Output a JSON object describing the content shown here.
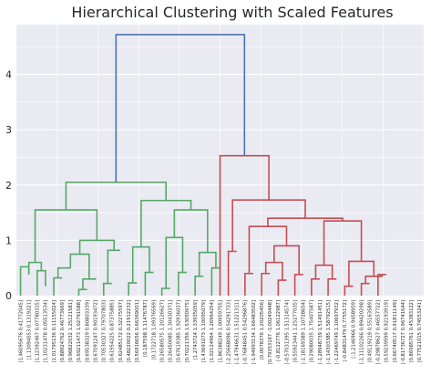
{
  "chart_data": {
    "type": "dendrogram",
    "title": "Hierarchical Clustering with Scaled Features",
    "xlabel": "",
    "ylabel": "",
    "ylim": [
      0,
      4.9
    ],
    "yticks": [
      0,
      1,
      2,
      3,
      4
    ],
    "grid": true,
    "background": "#eaeaf2",
    "colors": {
      "green": "#55a868",
      "red": "#c44e52",
      "blue": "#4c72b0"
    },
    "leaves": [
      "[1.46095676 0.41772045]",
      "[1.13094553 0.1319221]",
      "[1.12392467 0.07780315]",
      "[1.10231478 0.05513534]",
      "[1.01795136 0.11155024]",
      "[0.88924762 0.46773669]",
      "[0.96822032 1.25121581]",
      "[0.69211473 1.02791588]",
      "[0.69538329 0.80803339]",
      "[0.67091247 0.90193472]",
      "[0.70530327 0.79707803]",
      "[0.61954225 0.87375885]",
      "[0.62485172 0.32275597]",
      "[0.48220022 0.21912232]",
      "[0.56916656 0.66369001]",
      "[0.187598 1.11476787]",
      "[0.1722718 1.09376569]",
      "[0.26580575 1.20126627]",
      "[0.26450085 1.30430371]",
      "[0.67619385 1.92936037]",
      "[0.70221356 1.53050975]",
      "[1.2743724 1.33935059]",
      "[1.43691073 1.10095079]",
      "[1.02124964 1.26964254]",
      "[1.86388249 1.00959755]",
      "[-2.25668096 0.54291733]",
      "[-1.47946631 1.51221311]",
      "[-0.76848451 0.54296876]",
      "[-1.94993134 1.66483502]",
      "[0.0078376 1.20205456]",
      "[0.79353167 -1.00249448]",
      "[-0.8122776 1.06122987]",
      "[-0.57031395 1.51314574]",
      "[0.55923441 1.25277035]",
      "[-1.18169389 1.10728654]",
      "[0.29080035 1.75407587]",
      "[-1.28948739 1.51491451]",
      "[-1.14303385 1.58792515]",
      "[-1.22469749 1.10697932]",
      "[-0.84831479 0.7755172]",
      "[-1.2146966 0.9458959]",
      "[-1.11102266 0.89420298]",
      "[0.49119219 0.55163589]",
      "[-0.29878627 0.46557722]",
      "[0.59239999 0.92193919]",
      "[0.66740517 0.91811149]",
      "[-0.81736727 0.96741644]",
      "[0.86985761 0.45383122]",
      "[0.77521015 0.74553241]"
    ],
    "links": [
      {
        "x": [
          5,
          5,
          15,
          15
        ],
        "y": [
          0,
          0.52,
          0.52,
          0.38
        ],
        "color": "#55a868"
      },
      {
        "x": [
          25,
          25,
          35,
          35
        ],
        "y": [
          0,
          0.45,
          0.45,
          0.17
        ],
        "color": "#55a868"
      },
      {
        "x": [
          15,
          15,
          30,
          30
        ],
        "y": [
          0.38,
          0.6,
          0.6,
          0.45
        ],
        "color": "#55a868"
      },
      {
        "x": [
          45,
          45,
          55,
          55
        ],
        "y": [
          0,
          0.32,
          0.32,
          0.32
        ],
        "color": "#55a868"
      },
      {
        "x": [
          50,
          50,
          65,
          65
        ],
        "y": [
          0.32,
          0.5,
          0.5,
          0.5
        ],
        "color": "#55a868"
      },
      {
        "x": [
          75,
          75,
          85,
          85
        ],
        "y": [
          0,
          0.11,
          0.11,
          0.11
        ],
        "color": "#55a868"
      },
      {
        "x": [
          80,
          80,
          95,
          95
        ],
        "y": [
          0.11,
          0.3,
          0.3,
          0.32
        ],
        "color": "#55a868"
      },
      {
        "x": [
          65,
          65,
          87.5,
          87.5
        ],
        "y": [
          0.5,
          0.75,
          0.75,
          0.3
        ],
        "color": "#55a868"
      },
      {
        "x": [
          105,
          105,
          115,
          115
        ],
        "y": [
          0,
          0.22,
          0.22,
          0.22
        ],
        "color": "#55a868"
      },
      {
        "x": [
          110,
          110,
          125,
          125
        ],
        "y": [
          0.22,
          0.82,
          0.82,
          0.82
        ],
        "color": "#55a868"
      },
      {
        "x": [
          76.25,
          76.25,
          117.5,
          117.5
        ],
        "y": [
          0.75,
          1.0,
          1.0,
          0.82
        ],
        "color": "#55a868"
      },
      {
        "x": [
          22.5,
          22.5,
          96.88,
          96.88
        ],
        "y": [
          0.6,
          1.55,
          1.55,
          1.0
        ],
        "color": "#55a868"
      },
      {
        "x": [
          135,
          135,
          145,
          145
        ],
        "y": [
          0,
          0.23,
          0.23,
          0.23
        ],
        "color": "#55a868"
      },
      {
        "x": [
          155,
          155,
          165,
          165
        ],
        "y": [
          0,
          0.42,
          0.42,
          0.42
        ],
        "color": "#55a868"
      },
      {
        "x": [
          140,
          140,
          160,
          160
        ],
        "y": [
          0.23,
          0.88,
          0.88,
          0.42
        ],
        "color": "#55a868"
      },
      {
        "x": [
          175,
          175,
          185,
          185
        ],
        "y": [
          0,
          0.13,
          0.13,
          0.13
        ],
        "color": "#55a868"
      },
      {
        "x": [
          195,
          195,
          205,
          205
        ],
        "y": [
          0,
          0.42,
          0.42,
          0.42
        ],
        "color": "#55a868"
      },
      {
        "x": [
          180,
          180,
          200,
          200
        ],
        "y": [
          0.13,
          1.05,
          1.05,
          0.42
        ],
        "color": "#55a868"
      },
      {
        "x": [
          215,
          215,
          225,
          225
        ],
        "y": [
          0,
          0.35,
          0.35,
          0.35
        ],
        "color": "#55a868"
      },
      {
        "x": [
          235,
          235,
          245,
          245
        ],
        "y": [
          0,
          0.5,
          0.5,
          0.5
        ],
        "color": "#55a868"
      },
      {
        "x": [
          220,
          220,
          240,
          240
        ],
        "y": [
          0.35,
          0.78,
          0.78,
          0.5
        ],
        "color": "#55a868"
      },
      {
        "x": [
          190,
          190,
          230,
          230
        ],
        "y": [
          1.05,
          1.55,
          1.55,
          0.78
        ],
        "color": "#55a868"
      },
      {
        "x": [
          150,
          150,
          210,
          210
        ],
        "y": [
          0.88,
          1.72,
          1.72,
          1.55
        ],
        "color": "#55a868"
      },
      {
        "x": [
          59.69,
          59.69,
          180,
          180
        ],
        "y": [
          1.55,
          2.05,
          2.05,
          1.72
        ],
        "color": "#55a868"
      },
      {
        "x": [
          255,
          255,
          265,
          265
        ],
        "y": [
          0,
          0.8,
          0.8,
          0.8
        ],
        "color": "#c44e52"
      },
      {
        "x": [
          275,
          275,
          285,
          285
        ],
        "y": [
          0,
          0.4,
          0.4,
          0.4
        ],
        "color": "#c44e52"
      },
      {
        "x": [
          295,
          295,
          305,
          305
        ],
        "y": [
          0,
          0.4,
          0.4,
          0.4
        ],
        "color": "#c44e52"
      },
      {
        "x": [
          315,
          315,
          325,
          325
        ],
        "y": [
          0,
          0.28,
          0.28,
          0.28
        ],
        "color": "#c44e52"
      },
      {
        "x": [
          300,
          300,
          320,
          320
        ],
        "y": [
          0.4,
          0.6,
          0.6,
          0.28
        ],
        "color": "#c44e52"
      },
      {
        "x": [
          335,
          335,
          345,
          345
        ],
        "y": [
          0,
          0.38,
          0.38,
          0.38
        ],
        "color": "#c44e52"
      },
      {
        "x": [
          310,
          310,
          340,
          340
        ],
        "y": [
          0.6,
          0.9,
          0.9,
          0.38
        ],
        "color": "#c44e52"
      },
      {
        "x": [
          280,
          280,
          325,
          325
        ],
        "y": [
          0.4,
          1.25,
          1.25,
          0.9
        ],
        "color": "#c44e52"
      },
      {
        "x": [
          355,
          355,
          365,
          365
        ],
        "y": [
          0,
          0.3,
          0.3,
          0.3
        ],
        "color": "#c44e52"
      },
      {
        "x": [
          375,
          375,
          385,
          385
        ],
        "y": [
          0,
          0.3,
          0.3,
          0.3
        ],
        "color": "#c44e52"
      },
      {
        "x": [
          360,
          360,
          380,
          380
        ],
        "y": [
          0.3,
          0.55,
          0.55,
          0.3
        ],
        "color": "#c44e52"
      },
      {
        "x": [
          395,
          395,
          405,
          405
        ],
        "y": [
          0,
          0.17,
          0.17,
          0.17
        ],
        "color": "#c44e52"
      },
      {
        "x": [
          415,
          415,
          425,
          425
        ],
        "y": [
          0,
          0.22,
          0.22,
          0.22
        ],
        "color": "#c44e52"
      },
      {
        "x": [
          435,
          435,
          445,
          445
        ],
        "y": [
          0,
          0.38,
          0.38,
          0.38
        ],
        "color": "#c44e52"
      },
      {
        "x": [
          420,
          420,
          440,
          440
        ],
        "y": [
          0.22,
          0.35,
          0.35,
          0.38
        ],
        "color": "#c44e52"
      },
      {
        "x": [
          400,
          400,
          430,
          430
        ],
        "y": [
          0.17,
          0.62,
          0.62,
          0.35
        ],
        "color": "#c44e52"
      },
      {
        "x": [
          370,
          370,
          415,
          415
        ],
        "y": [
          0.55,
          1.35,
          1.35,
          0.62
        ],
        "color": "#c44e52"
      },
      {
        "x": [
          302.5,
          302.5,
          392.5,
          392.5
        ],
        "y": [
          1.25,
          1.4,
          1.4,
          1.35
        ],
        "color": "#c44e52"
      },
      {
        "x": [
          260,
          260,
          347.5,
          347.5
        ],
        "y": [
          0.8,
          1.73,
          1.73,
          1.4
        ],
        "color": "#c44e52"
      },
      {
        "x": [
          245,
          245,
          303.75,
          303.75
        ],
        "y": [
          0,
          2.53,
          2.53,
          1.73
        ],
        "color": "#c44e52"
      },
      {
        "x": [
          119.84,
          119.84,
          274.38,
          274.38
        ],
        "y": [
          2.05,
          4.72,
          4.72,
          2.53
        ],
        "color": "#4c72b0"
      }
    ]
  }
}
